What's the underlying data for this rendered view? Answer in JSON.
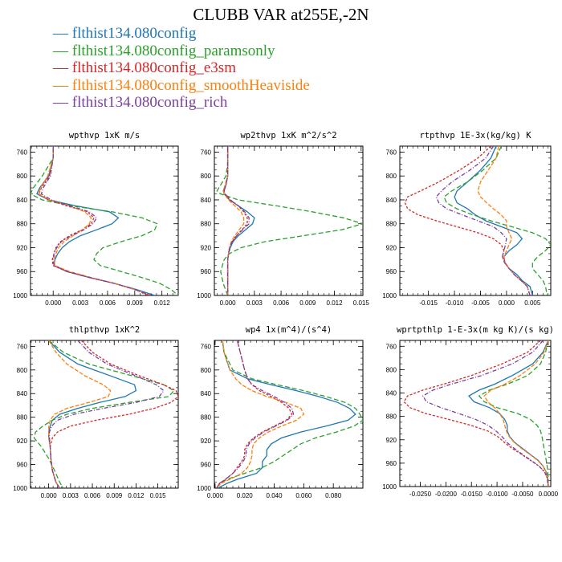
{
  "title": "CLUBB VAR at255E,-2N",
  "legend": [
    {
      "label": "flthist134.080config",
      "color": "#1f77b4"
    },
    {
      "label": "flthist134.080config_paramsonly",
      "color": "#2ca02c"
    },
    {
      "label": "flthist134.080config_e3sm",
      "color": "#d62728"
    },
    {
      "label": "flthist134.080config_smoothHeaviside",
      "color": "#ff7f0e"
    },
    {
      "label": "flthist134.080config_rich",
      "color": "#7b3fa0"
    }
  ],
  "chart_data": [
    {
      "type": "line",
      "title": "wpthvp  1xK m/s",
      "y_ticks": [
        760,
        800,
        840,
        880,
        920,
        960,
        1000
      ],
      "ylim": [
        1000,
        750
      ],
      "xlim": [
        -0.0025,
        0.0138
      ],
      "x_ticks": [
        0.0,
        0.003,
        0.006,
        0.009,
        0.012
      ],
      "x_tick_labels": [
        "0.000",
        "0.003",
        "0.006",
        "0.009",
        "0.012"
      ],
      "y": [
        750,
        770,
        800,
        820,
        830,
        840,
        850,
        860,
        870,
        880,
        890,
        900,
        910,
        920,
        930,
        940,
        950,
        960,
        970,
        980,
        990,
        1000
      ],
      "series": [
        {
          "values": [
            0.0,
            0.0,
            -0.0005,
            -0.0015,
            -0.0018,
            -0.0005,
            0.0025,
            0.0062,
            0.0072,
            0.0065,
            0.0048,
            0.003,
            0.0018,
            0.001,
            0.0005,
            0.0002,
            0.0001,
            0.0015,
            0.004,
            0.0068,
            0.0092,
            0.0112
          ]
        },
        {
          "values": [
            0.0,
            0.0,
            -0.0012,
            -0.0022,
            -0.0025,
            -0.0012,
            0.002,
            0.0065,
            0.0098,
            0.0115,
            0.0112,
            0.0098,
            0.0075,
            0.0055,
            0.0048,
            0.0045,
            0.0052,
            0.0075,
            0.0098,
            0.0118,
            0.013,
            0.0138
          ]
        },
        {
          "values": [
            0.0,
            0.0,
            -0.0004,
            -0.0013,
            -0.0016,
            -0.0005,
            0.0015,
            0.0038,
            0.0045,
            0.0042,
            0.0032,
            0.0018,
            0.0008,
            0.0003,
            0.0001,
            -0.0001,
            0.0,
            0.0015,
            0.004,
            0.0068,
            0.009,
            0.0105
          ]
        },
        {
          "values": [
            0.0,
            0.0,
            -0.0006,
            -0.0014,
            -0.0016,
            -0.0004,
            0.0018,
            0.0035,
            0.0042,
            0.004,
            0.0032,
            0.0022,
            0.0012,
            0.0006,
            0.0003,
            0.0001,
            0.0002,
            0.0018,
            0.0042,
            0.0068,
            0.009,
            0.0108
          ]
        },
        {
          "values": [
            0.0,
            0.0,
            -0.0003,
            -0.0011,
            -0.0013,
            -0.0002,
            0.0018,
            0.004,
            0.0048,
            0.0044,
            0.0034,
            0.002,
            0.0009,
            0.0004,
            0.0001,
            0.0,
            0.0001,
            0.0016,
            0.0041,
            0.0068,
            0.009,
            0.0108
          ]
        }
      ]
    },
    {
      "type": "line",
      "title": "wp2thvp  1xK m^2/s^2",
      "y_ticks": [
        760,
        800,
        840,
        880,
        920,
        960,
        1000
      ],
      "ylim": [
        1000,
        750
      ],
      "xlim": [
        -0.0015,
        0.0152
      ],
      "x_ticks": [
        0.0,
        0.003,
        0.006,
        0.009,
        0.012,
        0.015
      ],
      "x_tick_labels": [
        "0.000",
        "0.003",
        "0.006",
        "0.009",
        "0.012",
        "0.015"
      ],
      "y": [
        750,
        780,
        800,
        815,
        825,
        830,
        840,
        850,
        860,
        870,
        880,
        890,
        900,
        910,
        920,
        930,
        940,
        960,
        980,
        1000
      ],
      "series": [
        {
          "values": [
            0.0,
            0.0,
            0.0,
            -0.0002,
            -0.0005,
            -0.0004,
            0.0002,
            0.0012,
            0.0022,
            0.003,
            0.0028,
            0.002,
            0.0012,
            0.0006,
            0.0003,
            0.0001,
            0.0,
            0.0,
            0.0,
            0.0
          ]
        },
        {
          "values": [
            0.0,
            0.0,
            -0.0002,
            -0.0008,
            -0.0012,
            -0.0008,
            0.0012,
            0.0055,
            0.0095,
            0.013,
            0.0152,
            0.0128,
            0.0085,
            0.0042,
            0.0015,
            0.0002,
            -0.0004,
            -0.0008,
            -0.0005,
            0.0
          ]
        },
        {
          "values": [
            0.0,
            0.0,
            0.0,
            -0.0002,
            -0.0004,
            -0.0003,
            0.0003,
            0.0012,
            0.0018,
            0.0022,
            0.0022,
            0.0016,
            0.001,
            0.0005,
            0.0002,
            0.0001,
            0.0,
            0.0,
            0.0,
            0.0
          ]
        },
        {
          "values": [
            0.0,
            0.0,
            0.0,
            -0.0003,
            -0.0005,
            -0.0004,
            0.0001,
            0.0008,
            0.0015,
            0.0018,
            0.0018,
            0.0013,
            0.0008,
            0.0004,
            0.0002,
            0.0001,
            0.0,
            0.0,
            0.0,
            0.0
          ]
        },
        {
          "values": [
            0.0,
            0.0,
            0.0,
            -0.0002,
            -0.0004,
            -0.0003,
            0.0003,
            0.0012,
            0.0019,
            0.0024,
            0.0024,
            0.0017,
            0.001,
            0.0005,
            0.0002,
            0.0001,
            0.0,
            0.0,
            0.0,
            0.0
          ]
        }
      ]
    },
    {
      "type": "line",
      "title": "rtpthvp  1E-3x(kg/kg) K",
      "y_ticks": [
        760,
        800,
        840,
        880,
        920,
        960,
        1000
      ],
      "ylim": [
        1000,
        750
      ],
      "xlim": [
        -0.0205,
        0.0085
      ],
      "x_ticks": [
        -0.015,
        -0.01,
        -0.005,
        0.0,
        0.005
      ],
      "x_tick_labels": [
        "-0.015",
        "-0.010",
        "-0.005",
        "0.000",
        "0.005"
      ],
      "y": [
        750,
        770,
        790,
        810,
        825,
        835,
        845,
        855,
        865,
        875,
        885,
        895,
        905,
        915,
        925,
        935,
        945,
        955,
        965,
        975,
        985,
        1000
      ],
      "series": [
        {
          "values": [
            -0.002,
            -0.003,
            -0.005,
            -0.0075,
            -0.0095,
            -0.01,
            -0.0095,
            -0.0075,
            -0.006,
            -0.004,
            -0.001,
            0.002,
            0.003,
            0.002,
            0.0005,
            -0.0005,
            -0.0003,
            0.0005,
            0.002,
            0.003,
            0.0045,
            0.005
          ]
        },
        {
          "values": [
            -0.001,
            -0.002,
            -0.0045,
            -0.0075,
            -0.0105,
            -0.012,
            -0.0115,
            -0.0095,
            -0.0065,
            -0.003,
            0.001,
            0.005,
            0.0075,
            0.0085,
            0.0075,
            0.006,
            0.005,
            0.005,
            0.006,
            0.007,
            0.0075,
            0.0078
          ]
        },
        {
          "values": [
            -0.003,
            -0.0055,
            -0.009,
            -0.013,
            -0.0165,
            -0.019,
            -0.0195,
            -0.019,
            -0.017,
            -0.0135,
            -0.0095,
            -0.0055,
            -0.0025,
            -0.001,
            -0.0005,
            -0.0008,
            -0.0003,
            0.0005,
            0.0015,
            0.0028,
            0.004,
            0.0045
          ]
        },
        {
          "values": [
            -0.0015,
            -0.002,
            -0.0035,
            -0.005,
            -0.0055,
            -0.005,
            -0.0038,
            -0.0025,
            -0.001,
            0.0,
            0.0,
            0.0005,
            0.001,
            0.0005,
            0.0,
            -0.0005,
            -0.0003,
            0.0005,
            0.0015,
            0.0028,
            0.004,
            0.0045
          ]
        },
        {
          "values": [
            -0.0025,
            -0.004,
            -0.007,
            -0.0105,
            -0.0125,
            -0.0135,
            -0.013,
            -0.0115,
            -0.0085,
            -0.0055,
            -0.0025,
            -0.001,
            0.0,
            -0.0002,
            -0.0005,
            -0.0008,
            -0.0004,
            0.0005,
            0.0015,
            0.0028,
            0.004,
            0.0045
          ]
        }
      ]
    },
    {
      "type": "line",
      "title": "thlpthvp  1xK^2",
      "y_ticks": [
        760,
        800,
        840,
        880,
        920,
        960,
        1000
      ],
      "ylim": [
        1000,
        750
      ],
      "xlim": [
        -0.0025,
        0.0178
      ],
      "x_ticks": [
        0.0,
        0.003,
        0.006,
        0.009,
        0.012,
        0.015
      ],
      "x_tick_labels": [
        "0.000",
        "0.003",
        "0.006",
        "0.009",
        "0.012",
        "0.015"
      ],
      "y": [
        750,
        770,
        790,
        810,
        825,
        835,
        845,
        855,
        865,
        875,
        885,
        895,
        905,
        915,
        930,
        950,
        970,
        990,
        1000
      ],
      "series": [
        {
          "values": [
            0.0,
            0.0015,
            0.004,
            0.0085,
            0.0118,
            0.012,
            0.0105,
            0.007,
            0.004,
            0.0015,
            0.0005,
            0.0002,
            0.0,
            0.0,
            0.0002,
            0.0003,
            0.0005,
            0.001,
            0.0015
          ]
        },
        {
          "values": [
            0.0,
            0.002,
            0.0055,
            0.0115,
            0.0158,
            0.0172,
            0.0165,
            0.011,
            0.006,
            0.0025,
            0.0005,
            -0.0008,
            -0.0018,
            -0.002,
            -0.001,
            0.0,
            0.0008,
            0.0015,
            0.002
          ]
        },
        {
          "values": [
            0.0045,
            0.006,
            0.0085,
            0.0125,
            0.0158,
            0.0175,
            0.0178,
            0.0168,
            0.0145,
            0.011,
            0.0065,
            0.003,
            0.0012,
            0.0005,
            0.0002,
            0.0003,
            0.0005,
            0.001,
            0.0015
          ]
        },
        {
          "values": [
            0.0,
            0.001,
            0.0025,
            0.005,
            0.0075,
            0.0085,
            0.0082,
            0.0055,
            0.0025,
            0.0008,
            0.0002,
            0.0,
            0.0,
            0.0,
            0.0002,
            0.0003,
            0.0005,
            0.001,
            0.0015
          ]
        },
        {
          "values": [
            0.004,
            0.0055,
            0.008,
            0.012,
            0.0148,
            0.0158,
            0.0152,
            0.012,
            0.0075,
            0.0035,
            0.0012,
            0.0004,
            0.0001,
            0.0001,
            0.0002,
            0.0003,
            0.0005,
            0.001,
            0.0015
          ]
        }
      ]
    },
    {
      "type": "line",
      "title": "wp4  1x(m^4)/(s^4)",
      "y_ticks": [
        760,
        800,
        840,
        880,
        920,
        960,
        1000
      ],
      "ylim": [
        1000,
        750
      ],
      "xlim": [
        -0.0005,
        0.1
      ],
      "x_ticks": [
        0.0,
        0.02,
        0.04,
        0.06,
        0.08
      ],
      "x_tick_labels": [
        "0.000",
        "0.020",
        "0.040",
        "0.060",
        "0.080"
      ],
      "y": [
        750,
        770,
        800,
        815,
        825,
        835,
        845,
        855,
        865,
        875,
        885,
        895,
        905,
        915,
        925,
        935,
        945,
        955,
        965,
        975,
        985,
        992,
        1000
      ],
      "series": [
        {
          "values": [
            0.005,
            0.006,
            0.01,
            0.022,
            0.038,
            0.055,
            0.07,
            0.083,
            0.091,
            0.095,
            0.09,
            0.075,
            0.058,
            0.045,
            0.038,
            0.035,
            0.035,
            0.032,
            0.032,
            0.028,
            0.015,
            0.008,
            0.002
          ]
        },
        {
          "values": [
            0.005,
            0.006,
            0.012,
            0.025,
            0.042,
            0.06,
            0.075,
            0.088,
            0.095,
            0.098,
            0.1,
            0.094,
            0.082,
            0.068,
            0.058,
            0.052,
            0.046,
            0.04,
            0.032,
            0.02,
            0.008,
            0.003,
            0.001
          ]
        },
        {
          "values": [
            0.015,
            0.017,
            0.02,
            0.022,
            0.025,
            0.03,
            0.038,
            0.045,
            0.05,
            0.052,
            0.048,
            0.04,
            0.032,
            0.026,
            0.022,
            0.02,
            0.02,
            0.018,
            0.015,
            0.012,
            0.007,
            0.003,
            0.001
          ]
        },
        {
          "values": [
            0.005,
            0.006,
            0.01,
            0.014,
            0.018,
            0.025,
            0.035,
            0.048,
            0.058,
            0.06,
            0.055,
            0.045,
            0.036,
            0.03,
            0.026,
            0.025,
            0.025,
            0.024,
            0.022,
            0.018,
            0.01,
            0.004,
            0.001
          ]
        },
        {
          "values": [
            0.015,
            0.017,
            0.02,
            0.022,
            0.025,
            0.032,
            0.04,
            0.047,
            0.052,
            0.053,
            0.049,
            0.041,
            0.033,
            0.027,
            0.023,
            0.021,
            0.021,
            0.019,
            0.016,
            0.012,
            0.007,
            0.003,
            0.001
          ]
        }
      ]
    },
    {
      "type": "line",
      "title": "wprtpthlp  1-E-3x(m kg K)/(s kg)",
      "y_ticks": [
        760,
        800,
        840,
        880,
        920,
        960,
        1000
      ],
      "ylim": [
        1000,
        750
      ],
      "xlim": [
        -0.029,
        0.0005
      ],
      "x_ticks": [
        -0.025,
        -0.02,
        -0.015,
        -0.01,
        -0.005,
        0.0
      ],
      "x_tick_labels": [
        "-0.0250",
        "-0.0200",
        "-0.0150",
        "-0.0100",
        "-0.0050",
        "0.0000"
      ],
      "y": [
        750,
        770,
        790,
        810,
        825,
        835,
        845,
        855,
        865,
        875,
        885,
        895,
        905,
        915,
        925,
        935,
        945,
        955,
        965,
        975,
        985,
        1000
      ],
      "series": [
        {
          "values": [
            0.0,
            -0.001,
            -0.003,
            -0.007,
            -0.0105,
            -0.0135,
            -0.0155,
            -0.0145,
            -0.0115,
            -0.0095,
            -0.0085,
            -0.008,
            -0.008,
            -0.0075,
            -0.0065,
            -0.005,
            -0.0035,
            -0.002,
            -0.001,
            -0.0004,
            -0.0001,
            0.0
          ]
        },
        {
          "values": [
            0.0,
            -0.0005,
            -0.0015,
            -0.004,
            -0.008,
            -0.0115,
            -0.0135,
            -0.0125,
            -0.01,
            -0.006,
            -0.0035,
            -0.0022,
            -0.0015,
            -0.0012,
            -0.001,
            -0.0008,
            -0.0006,
            -0.0004,
            -0.0002,
            -0.0001,
            0.0,
            0.0
          ]
        },
        {
          "values": [
            -0.0015,
            -0.004,
            -0.009,
            -0.015,
            -0.0205,
            -0.0245,
            -0.0275,
            -0.0282,
            -0.027,
            -0.024,
            -0.0195,
            -0.0152,
            -0.0118,
            -0.0098,
            -0.0085,
            -0.007,
            -0.0052,
            -0.0035,
            -0.0018,
            -0.0007,
            -0.0002,
            0.0
          ]
        },
        {
          "values": [
            0.0,
            -0.0008,
            -0.0025,
            -0.0055,
            -0.0085,
            -0.0112,
            -0.0125,
            -0.0118,
            -0.0105,
            -0.0095,
            -0.0088,
            -0.0085,
            -0.0082,
            -0.0076,
            -0.0066,
            -0.0052,
            -0.0036,
            -0.0021,
            -0.001,
            -0.0004,
            -0.0001,
            0.0
          ]
        },
        {
          "values": [
            -0.001,
            -0.003,
            -0.007,
            -0.013,
            -0.019,
            -0.0225,
            -0.0245,
            -0.0238,
            -0.021,
            -0.0175,
            -0.0142,
            -0.0118,
            -0.0102,
            -0.009,
            -0.008,
            -0.0066,
            -0.005,
            -0.0034,
            -0.0018,
            -0.0007,
            -0.0002,
            0.0
          ]
        }
      ]
    }
  ]
}
